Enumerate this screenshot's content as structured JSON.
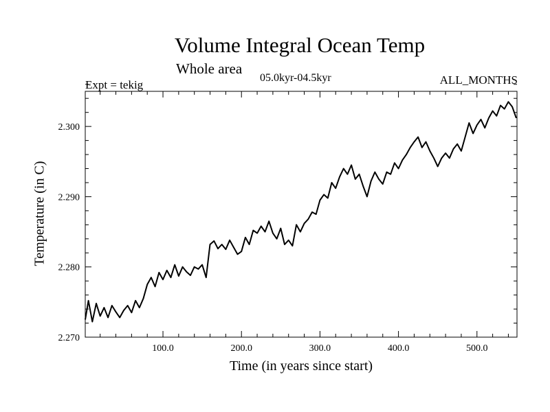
{
  "chart_data": {
    "type": "line",
    "title": "Volume Integral Ocean Temp",
    "subtitle": "Whole area",
    "period": "05.0kyr-04.5kyr",
    "experiment": "Expt = tekig",
    "months": "ALL_MONTHS",
    "xlabel": "Time (in years since start)",
    "ylabel": "Temperature (in C)",
    "xlim": [
      1,
      551
    ],
    "ylim": [
      2.27,
      2.305
    ],
    "x_ticks": [
      100,
      200,
      300,
      400,
      500
    ],
    "x_tick_labels": [
      "100.0",
      "200.0",
      "300.0",
      "400.0",
      "500.0"
    ],
    "y_ticks": [
      2.27,
      2.28,
      2.29,
      2.3
    ],
    "y_tick_labels": [
      "2.270",
      "2.280",
      "2.290",
      "2.300"
    ],
    "grid": false,
    "series": [
      {
        "name": "Volume integral ocean temperature",
        "color": "#000000",
        "x": [
          1,
          5,
          10,
          15,
          20,
          25,
          30,
          35,
          40,
          45,
          50,
          55,
          60,
          65,
          70,
          75,
          80,
          85,
          90,
          95,
          100,
          105,
          110,
          115,
          120,
          125,
          130,
          135,
          140,
          145,
          150,
          155,
          160,
          165,
          170,
          175,
          180,
          185,
          190,
          195,
          200,
          205,
          210,
          215,
          220,
          225,
          230,
          235,
          240,
          245,
          250,
          255,
          260,
          265,
          270,
          275,
          280,
          285,
          290,
          295,
          300,
          305,
          310,
          315,
          320,
          325,
          330,
          335,
          340,
          345,
          350,
          355,
          360,
          365,
          370,
          375,
          380,
          385,
          390,
          395,
          400,
          405,
          410,
          415,
          420,
          425,
          430,
          435,
          440,
          445,
          450,
          455,
          460,
          465,
          470,
          475,
          480,
          485,
          490,
          495,
          500,
          505,
          510,
          515,
          520,
          525,
          530,
          535,
          540,
          545,
          550
        ],
        "values": [
          2.2725,
          2.2752,
          2.2722,
          2.2748,
          2.273,
          2.2742,
          2.2728,
          2.2745,
          2.2736,
          2.2728,
          2.2738,
          2.2745,
          2.2735,
          2.2752,
          2.2742,
          2.2755,
          2.2775,
          2.2785,
          2.2772,
          2.2792,
          2.2782,
          2.2795,
          2.2785,
          2.2803,
          2.2787,
          2.28,
          2.2793,
          2.2788,
          2.28,
          2.2797,
          2.2803,
          2.2785,
          2.2832,
          2.2837,
          2.2826,
          2.2832,
          2.2825,
          2.2838,
          2.2828,
          2.2818,
          2.2822,
          2.2842,
          2.2832,
          2.2852,
          2.2848,
          2.2858,
          2.285,
          2.2865,
          2.2848,
          2.284,
          2.2855,
          2.2832,
          2.2838,
          2.283,
          2.286,
          2.285,
          2.2862,
          2.2868,
          2.2878,
          2.2875,
          2.2895,
          2.2903,
          2.2898,
          2.292,
          2.2912,
          2.2928,
          2.294,
          2.2932,
          2.2945,
          2.2925,
          2.2932,
          2.2915,
          2.29,
          2.2922,
          2.2935,
          2.2925,
          2.2918,
          2.2935,
          2.2932,
          2.2948,
          2.294,
          2.2952,
          2.296,
          2.297,
          2.2978,
          2.2985,
          2.297,
          2.2978,
          2.2965,
          2.2955,
          2.2943,
          2.2955,
          2.2962,
          2.2955,
          2.2968,
          2.2975,
          2.2965,
          2.2985,
          2.3005,
          2.299,
          2.3002,
          2.301,
          2.2998,
          2.3012,
          2.3022,
          2.3015,
          2.303,
          2.3025,
          2.3035,
          2.3028,
          2.3012
        ]
      }
    ]
  }
}
